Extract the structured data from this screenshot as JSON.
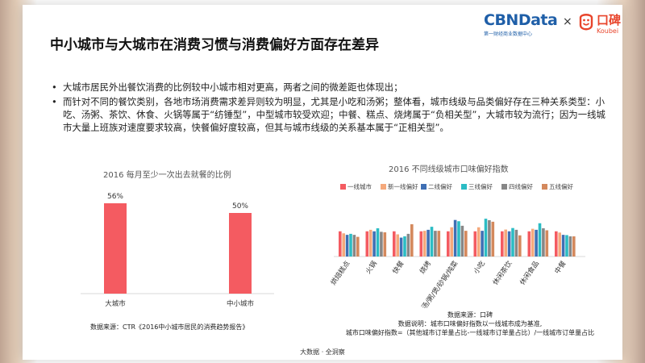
{
  "header": {
    "logo_cbn": "CBNData",
    "logo_cbn_tagline": "第一财经商业数据中心",
    "times": "×",
    "logo_koubei_cn": "口碑",
    "logo_koubei_en": "Koubei"
  },
  "title": "中小城市与大城市在消费习惯与消费偏好方面存在差异",
  "bullets": [
    "大城市居民外出餐饮消费的比例较中小城市相对更高，两者之间的微差距也体现出；",
    "而针对不同的餐饮类别，各地市场消费需求差异则较为明显，尤其是小吃和汤粥；整体看，城市线级与品类偏好存在三种关系类型：小吃、汤粥、茶饮、休食、火锅等属于“纺锤型”，中型城市较受欢迎；中餐、糕点、烧烤属于“负相关型”，大城市较为流行；因为一线城市大量上班族对速度要求较高，快餐偏好度较高，但其与城市线级的关系基本属于“正相关型”。"
  ],
  "colors": {
    "bar_left": "#f45b61",
    "series": [
      "#f45b61",
      "#f5a97c",
      "#3f6fb4",
      "#2bbcc4",
      "#878787",
      "#d4895d"
    ]
  },
  "chart_data": [
    {
      "type": "bar",
      "title": "2016 每月至少一次出去就餐的比例",
      "categories": [
        "大城市",
        "中小城市"
      ],
      "values": [
        56,
        50
      ],
      "value_labels": [
        "56%",
        "50%"
      ],
      "ylim": [
        0,
        60
      ],
      "grid": false,
      "legend": "none"
    },
    {
      "type": "bar",
      "title": "2016 不同线级城市口味偏好指数",
      "categories": [
        "烘焙糕点",
        "火锅",
        "快餐",
        "烧烤",
        "汤/粥/煲/砂锅/炖菜",
        "小吃",
        "休闲茶饮",
        "休闲食品",
        "中餐"
      ],
      "series": [
        {
          "name": "一线城市",
          "values": [
            1.0,
            1.0,
            1.0,
            1.0,
            1.0,
            1.0,
            1.0,
            1.0,
            1.0
          ]
        },
        {
          "name": "新一线偏好",
          "values": [
            0.92,
            1.06,
            0.88,
            1.02,
            1.16,
            1.16,
            1.07,
            1.1,
            0.95
          ]
        },
        {
          "name": "二线偏好",
          "values": [
            0.86,
            1.0,
            0.75,
            1.06,
            1.45,
            1.02,
            1.0,
            1.06,
            0.86
          ]
        },
        {
          "name": "三线偏好",
          "values": [
            0.9,
            1.12,
            0.8,
            1.18,
            1.4,
            1.5,
            1.13,
            1.32,
            0.85
          ]
        },
        {
          "name": "四线偏好",
          "values": [
            0.86,
            0.98,
            0.9,
            1.02,
            1.22,
            1.44,
            1.06,
            1.12,
            0.8
          ]
        },
        {
          "name": "五线偏好",
          "values": [
            0.78,
            0.96,
            1.28,
            1.02,
            1.02,
            1.38,
            0.84,
            1.04,
            0.8
          ]
        }
      ],
      "ylim": [
        0,
        1.6
      ],
      "legend": "top"
    }
  ],
  "sources": {
    "left": "数据来源：CTR《2016中小城市居民的消费趋势报告》",
    "right_line1": "数据来源：口碑",
    "right_line2": "数据说明：城市口味偏好指数以一线城市成为基准,",
    "right_line3": "城市口味偏好指数=（其他城市订单量占比-一线城市订单量占比）/一线城市订单量占比"
  },
  "footer": "大数据 · 全洞察"
}
